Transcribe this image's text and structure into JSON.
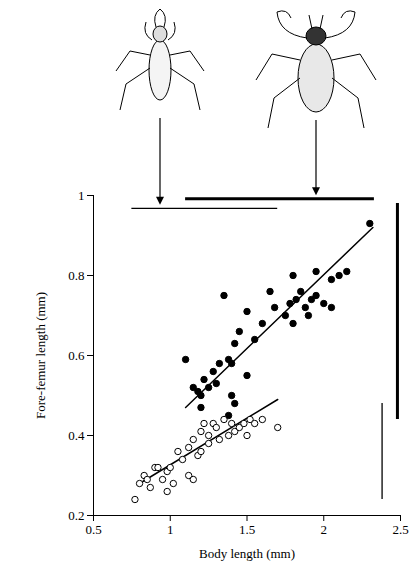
{
  "chart_data": {
    "type": "scatter",
    "x_label": "Body length (mm)",
    "y_label": "Fore-femur length (mm)",
    "xlim": [
      0.5,
      2.5
    ],
    "xticks": [
      0.5,
      1,
      1.5,
      2,
      2.5
    ],
    "ylim": [
      0.2,
      1
    ],
    "yticks": [
      0.2,
      0.4,
      0.6,
      0.8,
      1
    ],
    "series": [
      {
        "color": "#000000",
        "marker": "filled circle",
        "line_style": "thick",
        "x": [
          1.1,
          1.15,
          1.18,
          1.2,
          1.2,
          1.22,
          1.25,
          1.28,
          1.3,
          1.32,
          1.35,
          1.38,
          1.4,
          1.4,
          1.42,
          1.38,
          1.42,
          1.45,
          1.5,
          1.5,
          1.55,
          1.6,
          1.65,
          1.68,
          1.75,
          1.78,
          1.8,
          1.82,
          1.85,
          1.88,
          1.9,
          1.92,
          1.95,
          1.95,
          2.0,
          2.05,
          2.05,
          2.1,
          2.15,
          2.3,
          1.8
        ],
        "values": [
          0.59,
          0.52,
          0.51,
          0.5,
          0.47,
          0.54,
          0.52,
          0.56,
          0.53,
          0.58,
          0.75,
          0.59,
          0.58,
          0.5,
          0.48,
          0.45,
          0.63,
          0.66,
          0.71,
          0.55,
          0.64,
          0.68,
          0.76,
          0.72,
          0.7,
          0.73,
          0.68,
          0.74,
          0.76,
          0.72,
          0.7,
          0.74,
          0.75,
          0.81,
          0.73,
          0.79,
          0.72,
          0.8,
          0.81,
          0.93,
          0.8
        ],
        "fit_x": [
          1.1,
          2.32
        ],
        "fit_y": [
          0.47,
          0.92
        ],
        "x_range": [
          1.1,
          2.33
        ],
        "y_range": [
          0.44,
          0.98
        ]
      },
      {
        "color": "#000000",
        "marker": "open circle",
        "line_style": "thin",
        "x": [
          0.77,
          0.8,
          0.83,
          0.85,
          0.87,
          0.9,
          0.92,
          0.95,
          0.98,
          0.98,
          1.0,
          1.02,
          1.05,
          1.08,
          1.12,
          1.15,
          1.18,
          1.2,
          1.2,
          1.22,
          1.25,
          1.25,
          1.28,
          1.3,
          1.32,
          1.35,
          1.38,
          1.4,
          1.42,
          1.45,
          1.48,
          1.5,
          1.52,
          1.55,
          1.6,
          1.7,
          1.12,
          1.15
        ],
        "values": [
          0.24,
          0.28,
          0.3,
          0.29,
          0.27,
          0.32,
          0.32,
          0.29,
          0.31,
          0.26,
          0.32,
          0.28,
          0.36,
          0.34,
          0.37,
          0.39,
          0.35,
          0.36,
          0.41,
          0.43,
          0.4,
          0.38,
          0.43,
          0.42,
          0.39,
          0.44,
          0.4,
          0.43,
          0.41,
          0.42,
          0.43,
          0.4,
          0.44,
          0.43,
          0.44,
          0.42,
          0.3,
          0.29
        ],
        "fit_x": [
          0.8,
          1.7
        ],
        "fit_y": [
          0.28,
          0.49
        ],
        "x_range": [
          0.75,
          1.7
        ],
        "y_range": [
          0.24,
          0.48
        ]
      }
    ]
  }
}
